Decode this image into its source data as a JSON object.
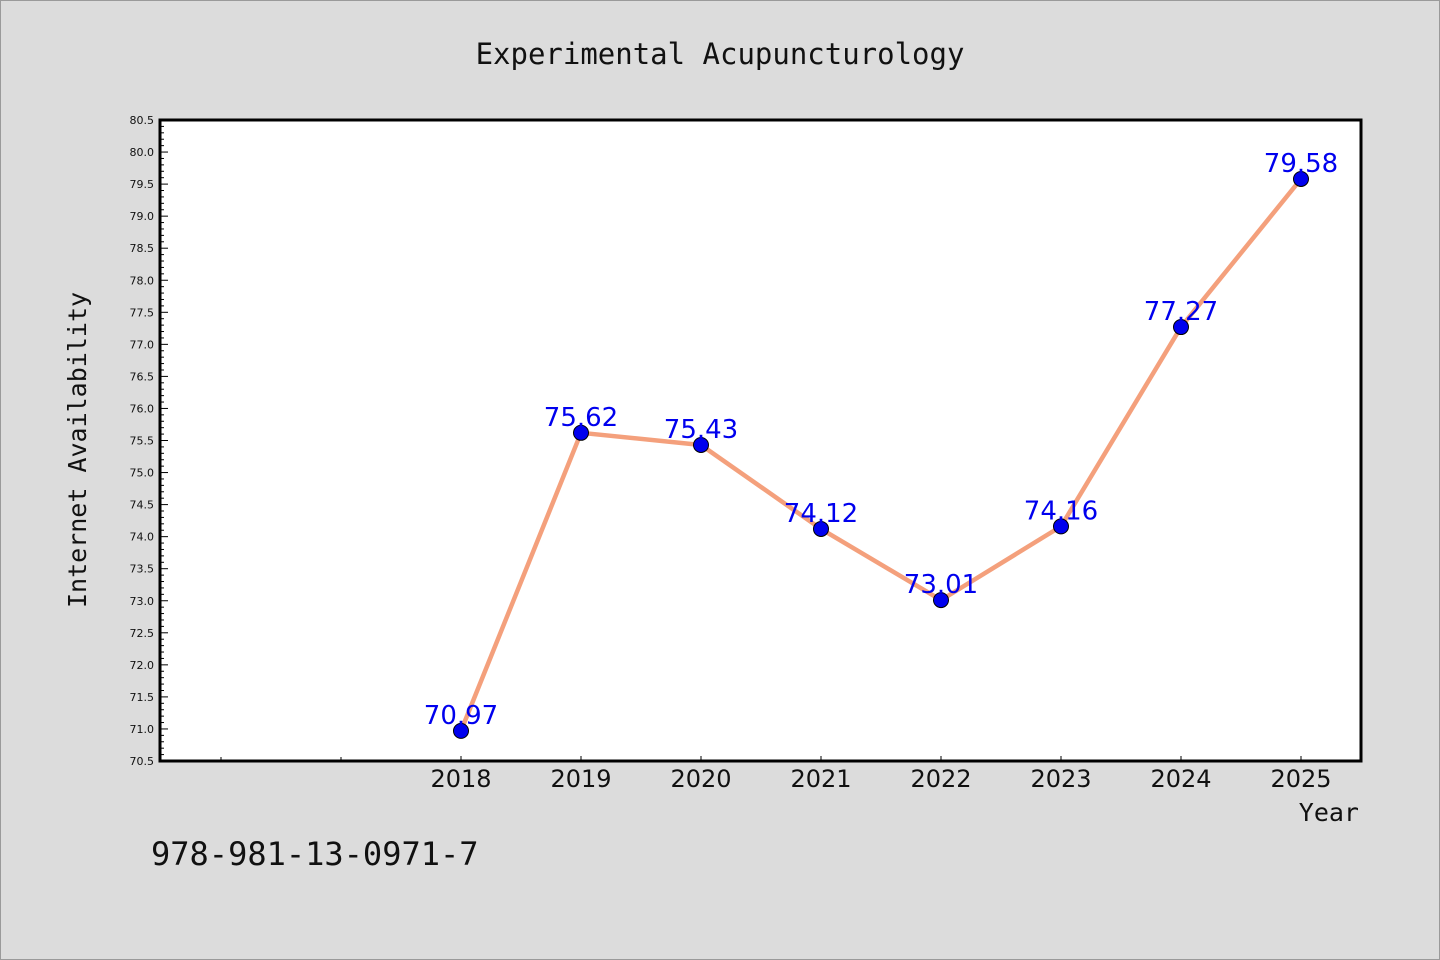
{
  "chart_data": {
    "type": "line",
    "title": "Experimental Acupuncturology",
    "xlabel": "Year",
    "ylabel": "Internet Availability",
    "categories": [
      "2018",
      "2019",
      "2020",
      "2021",
      "2022",
      "2023",
      "2024",
      "2025"
    ],
    "series": [
      {
        "values": [
          70.97,
          75.62,
          75.43,
          74.12,
          73.01,
          74.16,
          77.27,
          79.58
        ],
        "labels": [
          "70.97",
          "75.62",
          "75.43",
          "74.12",
          "73.01",
          "74.16",
          "77.27",
          "79.58"
        ],
        "line_color": "#f4a07c",
        "marker_color": "#0000ee"
      }
    ],
    "ylim": [
      70.5,
      80.5
    ],
    "yticks": [
      "70.5",
      "71.0",
      "71.5",
      "72.0",
      "72.5",
      "73.0",
      "73.5",
      "74.0",
      "74.5",
      "75.0",
      "75.5",
      "76.0",
      "76.5",
      "77.0",
      "77.5",
      "78.0",
      "78.5",
      "79.0",
      "79.5",
      "80.0",
      "80.5"
    ],
    "grid": false,
    "legend": "none",
    "background_color": "#dcdcdc",
    "plot_background": "#ffffff"
  },
  "footer": {
    "isbn": "978-981-13-0971-7"
  }
}
